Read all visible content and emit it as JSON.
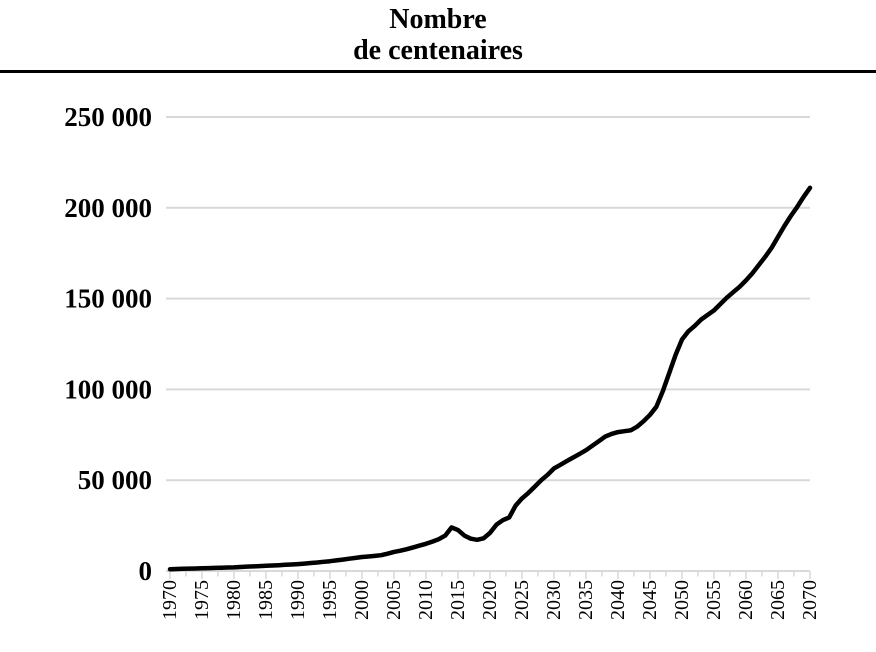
{
  "header": {
    "title_line1": "Nombre",
    "title_line2": "de centenaires"
  },
  "chart_data": {
    "type": "line",
    "title": "Nombre de centenaires",
    "xlabel": "",
    "ylabel": "",
    "legend": "none",
    "grid": true,
    "line_color": "#000000",
    "grid_color": "#d9d9d9",
    "line_width": 4.5,
    "xlim": [
      1970,
      2070
    ],
    "ylim": [
      0,
      250000
    ],
    "x_tick_interval": 5,
    "minor_tick_step_years": 2.5,
    "x_ticks": [
      1970,
      1975,
      1980,
      1985,
      1990,
      1995,
      2000,
      2005,
      2010,
      2015,
      2020,
      2025,
      2030,
      2035,
      2040,
      2045,
      2050,
      2055,
      2060,
      2065,
      2070
    ],
    "x_tick_labels": [
      "1970",
      "1975",
      "1980",
      "1985",
      "1990",
      "1995",
      "2000",
      "2005",
      "2010",
      "2015",
      "2020",
      "2025",
      "2030",
      "2035",
      "2040",
      "2045",
      "2050",
      "2055",
      "2060",
      "2065",
      "2070"
    ],
    "y_ticks": [
      0,
      50000,
      100000,
      150000,
      200000,
      250000
    ],
    "y_tick_labels": [
      "0",
      "50 000",
      "100 000",
      "150 000",
      "200 000",
      "250 000"
    ],
    "points": [
      [
        1970,
        1000
      ],
      [
        1971,
        1100
      ],
      [
        1972,
        1200
      ],
      [
        1973,
        1300
      ],
      [
        1974,
        1400
      ],
      [
        1975,
        1500
      ],
      [
        1976,
        1600
      ],
      [
        1977,
        1700
      ],
      [
        1978,
        1800
      ],
      [
        1979,
        1900
      ],
      [
        1980,
        2000
      ],
      [
        1981,
        2200
      ],
      [
        1982,
        2400
      ],
      [
        1983,
        2550
      ],
      [
        1984,
        2700
      ],
      [
        1985,
        2900
      ],
      [
        1986,
        3050
      ],
      [
        1987,
        3200
      ],
      [
        1988,
        3400
      ],
      [
        1989,
        3600
      ],
      [
        1990,
        3800
      ],
      [
        1991,
        4100
      ],
      [
        1992,
        4400
      ],
      [
        1993,
        4700
      ],
      [
        1994,
        5050
      ],
      [
        1995,
        5400
      ],
      [
        1996,
        5850
      ],
      [
        1997,
        6300
      ],
      [
        1998,
        6750
      ],
      [
        1999,
        7200
      ],
      [
        2000,
        7700
      ],
      [
        2001,
        8000
      ],
      [
        2002,
        8300
      ],
      [
        2003,
        8700
      ],
      [
        2004,
        9500
      ],
      [
        2005,
        10500
      ],
      [
        2006,
        11200
      ],
      [
        2007,
        12000
      ],
      [
        2008,
        13000
      ],
      [
        2009,
        14000
      ],
      [
        2010,
        15000
      ],
      [
        2011,
        16200
      ],
      [
        2012,
        17500
      ],
      [
        2013,
        19500
      ],
      [
        2014,
        24000
      ],
      [
        2015,
        22500
      ],
      [
        2016,
        19500
      ],
      [
        2017,
        17800
      ],
      [
        2018,
        17200
      ],
      [
        2019,
        18000
      ],
      [
        2020,
        21000
      ],
      [
        2021,
        25500
      ],
      [
        2022,
        28000
      ],
      [
        2023,
        29500
      ],
      [
        2024,
        36000
      ],
      [
        2025,
        40000
      ],
      [
        2026,
        43000
      ],
      [
        2027,
        46500
      ],
      [
        2028,
        50000
      ],
      [
        2029,
        53000
      ],
      [
        2030,
        56500
      ],
      [
        2031,
        58500
      ],
      [
        2032,
        60500
      ],
      [
        2033,
        62500
      ],
      [
        2034,
        64500
      ],
      [
        2035,
        66500
      ],
      [
        2036,
        69000
      ],
      [
        2037,
        71500
      ],
      [
        2038,
        74000
      ],
      [
        2039,
        75500
      ],
      [
        2040,
        76500
      ],
      [
        2041,
        77000
      ],
      [
        2042,
        77500
      ],
      [
        2043,
        79500
      ],
      [
        2044,
        82500
      ],
      [
        2045,
        86000
      ],
      [
        2046,
        90500
      ],
      [
        2047,
        99000
      ],
      [
        2048,
        109000
      ],
      [
        2049,
        119000
      ],
      [
        2050,
        127500
      ],
      [
        2051,
        132000
      ],
      [
        2052,
        135000
      ],
      [
        2053,
        138500
      ],
      [
        2054,
        141000
      ],
      [
        2055,
        143500
      ],
      [
        2056,
        147000
      ],
      [
        2057,
        150500
      ],
      [
        2058,
        153500
      ],
      [
        2059,
        156500
      ],
      [
        2060,
        160000
      ],
      [
        2061,
        164000
      ],
      [
        2062,
        168500
      ],
      [
        2063,
        173000
      ],
      [
        2064,
        178000
      ],
      [
        2065,
        184000
      ],
      [
        2066,
        190000
      ],
      [
        2067,
        195500
      ],
      [
        2068,
        200500
      ],
      [
        2069,
        206000
      ],
      [
        2070,
        211000
      ]
    ]
  }
}
